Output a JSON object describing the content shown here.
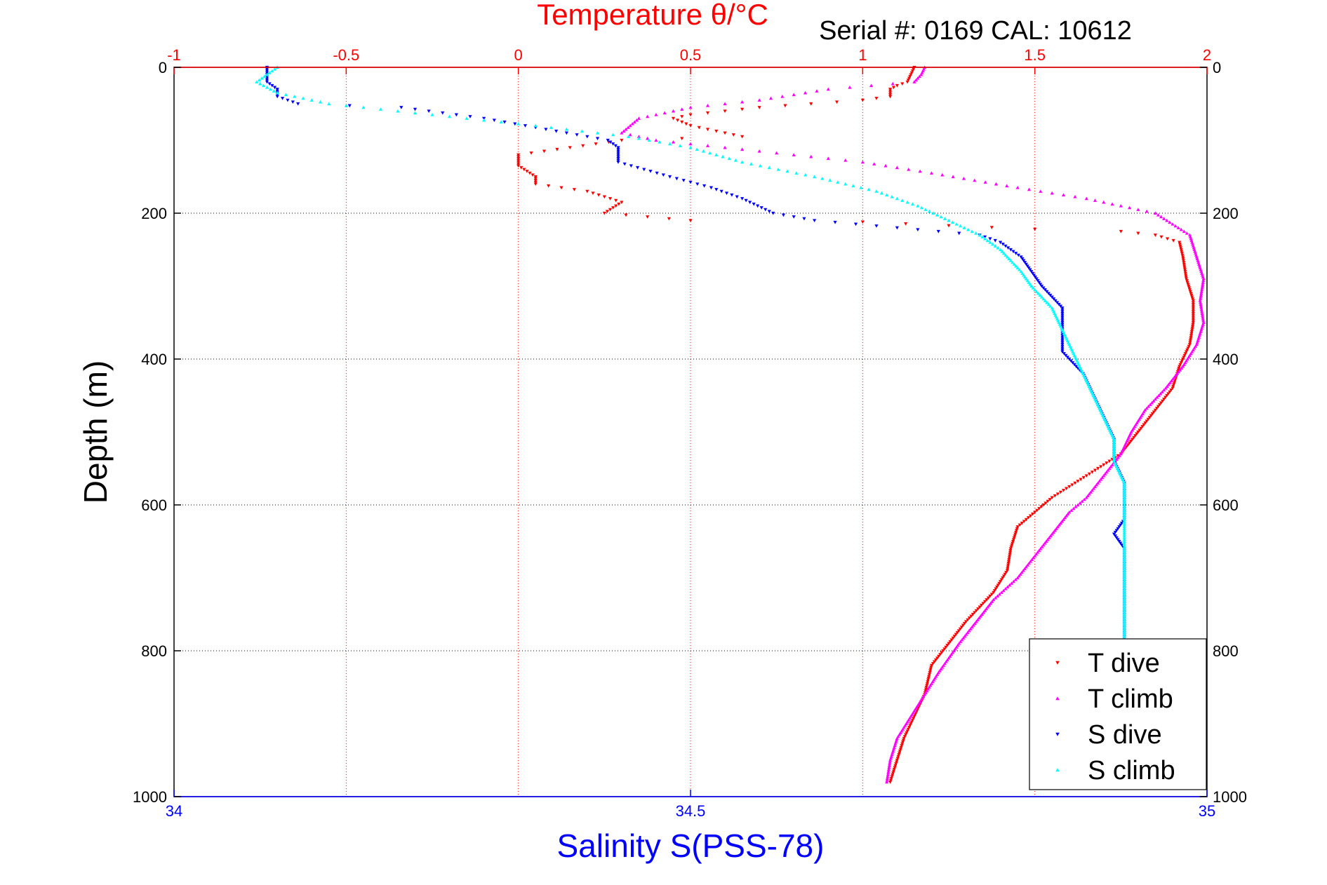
{
  "chart_data": {
    "type": "scatter",
    "title": "Temperature θ/°C",
    "subtitle": "Serial #: 0169 CAL: 10612",
    "ylabel": "Depth (m)",
    "xlabel_bottom": "Salinity S(PSS-78)",
    "xlabel_top": "Temperature θ/°C",
    "ylim": [
      0,
      1000
    ],
    "y_reversed": true,
    "xlim_temperature": [
      -1,
      2
    ],
    "xlim_salinity": [
      34,
      35
    ],
    "y_ticks": [
      0,
      200,
      400,
      600,
      800,
      1000
    ],
    "top_ticks": [
      -1,
      -0.5,
      0,
      0.5,
      1,
      1.5,
      2
    ],
    "top_tick_labels": [
      "-1",
      "-0.5",
      "0",
      "0.5",
      "1",
      "1.5",
      "2"
    ],
    "bottom_ticks": [
      34,
      34.5,
      35
    ],
    "bottom_tick_labels": [
      "34",
      "34.5",
      "35"
    ],
    "grid": true,
    "legend_position": "bottom-right",
    "colors": {
      "t_dive": "#ff0000",
      "t_climb": "#ff00ff",
      "s_dive": "#0000ff",
      "s_climb": "#00ffff",
      "axis_top": "#ff0000",
      "axis_bottom": "#0000ff"
    },
    "series": [
      {
        "name": "T dive",
        "axis": "temperature",
        "color": "#ff0000",
        "points": [
          [
            1.15,
            0
          ],
          [
            1.14,
            10
          ],
          [
            1.13,
            20
          ],
          [
            1.1,
            25
          ],
          [
            1.08,
            30
          ],
          [
            1.08,
            40
          ],
          [
            1.0,
            45
          ],
          [
            0.7,
            55
          ],
          [
            0.5,
            65
          ],
          [
            0.45,
            70
          ],
          [
            0.5,
            80
          ],
          [
            0.6,
            90
          ],
          [
            0.65,
            95
          ],
          [
            0.3,
            100
          ],
          [
            0.0,
            120
          ],
          [
            0.0,
            135
          ],
          [
            0.05,
            150
          ],
          [
            0.05,
            160
          ],
          [
            0.2,
            170
          ],
          [
            0.3,
            185
          ],
          [
            0.25,
            200
          ],
          [
            0.5,
            210
          ],
          [
            1.0,
            212
          ],
          [
            1.5,
            222
          ],
          [
            1.75,
            225
          ],
          [
            1.85,
            230
          ],
          [
            1.92,
            240
          ],
          [
            1.93,
            260
          ],
          [
            1.94,
            290
          ],
          [
            1.96,
            320
          ],
          [
            1.96,
            350
          ],
          [
            1.95,
            380
          ],
          [
            1.92,
            410
          ],
          [
            1.9,
            440
          ],
          [
            1.85,
            470
          ],
          [
            1.8,
            500
          ],
          [
            1.75,
            530
          ],
          [
            1.65,
            560
          ],
          [
            1.55,
            590
          ],
          [
            1.5,
            610
          ],
          [
            1.45,
            630
          ],
          [
            1.43,
            660
          ],
          [
            1.42,
            690
          ],
          [
            1.38,
            720
          ],
          [
            1.3,
            760
          ],
          [
            1.25,
            790
          ],
          [
            1.2,
            820
          ],
          [
            1.18,
            860
          ],
          [
            1.15,
            890
          ],
          [
            1.12,
            920
          ],
          [
            1.1,
            950
          ],
          [
            1.08,
            980
          ]
        ]
      },
      {
        "name": "T climb",
        "axis": "temperature",
        "color": "#ff00ff",
        "points": [
          [
            1.18,
            0
          ],
          [
            1.17,
            10
          ],
          [
            1.15,
            20
          ],
          [
            0.9,
            30
          ],
          [
            0.7,
            45
          ],
          [
            0.5,
            55
          ],
          [
            0.35,
            70
          ],
          [
            0.3,
            90
          ],
          [
            0.4,
            100
          ],
          [
            0.7,
            115
          ],
          [
            1.0,
            130
          ],
          [
            1.2,
            145
          ],
          [
            1.45,
            165
          ],
          [
            1.65,
            180
          ],
          [
            1.85,
            200
          ],
          [
            1.95,
            230
          ],
          [
            1.97,
            260
          ],
          [
            1.99,
            290
          ],
          [
            1.98,
            320
          ],
          [
            1.99,
            350
          ],
          [
            1.97,
            380
          ],
          [
            1.93,
            410
          ],
          [
            1.88,
            440
          ],
          [
            1.82,
            470
          ],
          [
            1.78,
            500
          ],
          [
            1.75,
            530
          ],
          [
            1.7,
            560
          ],
          [
            1.65,
            590
          ],
          [
            1.6,
            610
          ],
          [
            1.55,
            640
          ],
          [
            1.5,
            670
          ],
          [
            1.45,
            700
          ],
          [
            1.38,
            730
          ],
          [
            1.33,
            760
          ],
          [
            1.28,
            790
          ],
          [
            1.22,
            830
          ],
          [
            1.18,
            860
          ],
          [
            1.14,
            890
          ],
          [
            1.1,
            920
          ],
          [
            1.08,
            950
          ],
          [
            1.07,
            980
          ]
        ]
      },
      {
        "name": "S dive",
        "axis": "salinity",
        "color": "#0000ff",
        "points": [
          [
            34.09,
            0
          ],
          [
            34.09,
            10
          ],
          [
            34.09,
            20
          ],
          [
            34.1,
            30
          ],
          [
            34.1,
            40
          ],
          [
            34.12,
            50
          ],
          [
            34.22,
            55
          ],
          [
            34.3,
            70
          ],
          [
            34.36,
            85
          ],
          [
            34.42,
            100
          ],
          [
            34.43,
            110
          ],
          [
            34.43,
            130
          ],
          [
            34.48,
            150
          ],
          [
            34.52,
            165
          ],
          [
            34.55,
            180
          ],
          [
            34.58,
            200
          ],
          [
            34.62,
            210
          ],
          [
            34.7,
            220
          ],
          [
            34.78,
            230
          ],
          [
            34.8,
            240
          ],
          [
            34.82,
            260
          ],
          [
            34.83,
            280
          ],
          [
            34.84,
            300
          ],
          [
            34.86,
            330
          ],
          [
            34.86,
            360
          ],
          [
            34.86,
            390
          ],
          [
            34.88,
            420
          ],
          [
            34.89,
            450
          ],
          [
            34.9,
            480
          ],
          [
            34.91,
            510
          ],
          [
            34.91,
            540
          ],
          [
            34.92,
            570
          ],
          [
            34.92,
            600
          ],
          [
            34.92,
            620
          ],
          [
            34.91,
            640
          ],
          [
            34.92,
            660
          ],
          [
            34.92,
            690
          ],
          [
            34.92,
            720
          ],
          [
            34.92,
            750
          ],
          [
            34.92,
            780
          ],
          [
            34.92,
            810
          ],
          [
            34.92,
            840
          ],
          [
            34.92,
            870
          ],
          [
            34.92,
            900
          ],
          [
            34.92,
            930
          ],
          [
            34.92,
            960
          ],
          [
            34.92,
            980
          ]
        ]
      },
      {
        "name": "S climb",
        "axis": "salinity",
        "color": "#00ffff",
        "points": [
          [
            34.1,
            0
          ],
          [
            34.08,
            20
          ],
          [
            34.1,
            35
          ],
          [
            34.15,
            50
          ],
          [
            34.25,
            65
          ],
          [
            34.35,
            80
          ],
          [
            34.44,
            95
          ],
          [
            34.5,
            110
          ],
          [
            34.55,
            130
          ],
          [
            34.62,
            150
          ],
          [
            34.68,
            170
          ],
          [
            34.72,
            190
          ],
          [
            34.75,
            210
          ],
          [
            34.78,
            230
          ],
          [
            34.8,
            250
          ],
          [
            34.82,
            280
          ],
          [
            34.83,
            300
          ],
          [
            34.85,
            330
          ],
          [
            34.86,
            360
          ],
          [
            34.87,
            390
          ],
          [
            34.88,
            420
          ],
          [
            34.89,
            450
          ],
          [
            34.9,
            480
          ],
          [
            34.91,
            510
          ],
          [
            34.91,
            540
          ],
          [
            34.92,
            570
          ],
          [
            34.92,
            600
          ],
          [
            34.92,
            630
          ],
          [
            34.92,
            660
          ],
          [
            34.92,
            690
          ],
          [
            34.92,
            720
          ],
          [
            34.92,
            750
          ],
          [
            34.92,
            780
          ],
          [
            34.92,
            810
          ],
          [
            34.92,
            840
          ],
          [
            34.92,
            870
          ],
          [
            34.92,
            900
          ],
          [
            34.92,
            930
          ],
          [
            34.92,
            960
          ],
          [
            34.92,
            980
          ]
        ]
      }
    ]
  }
}
